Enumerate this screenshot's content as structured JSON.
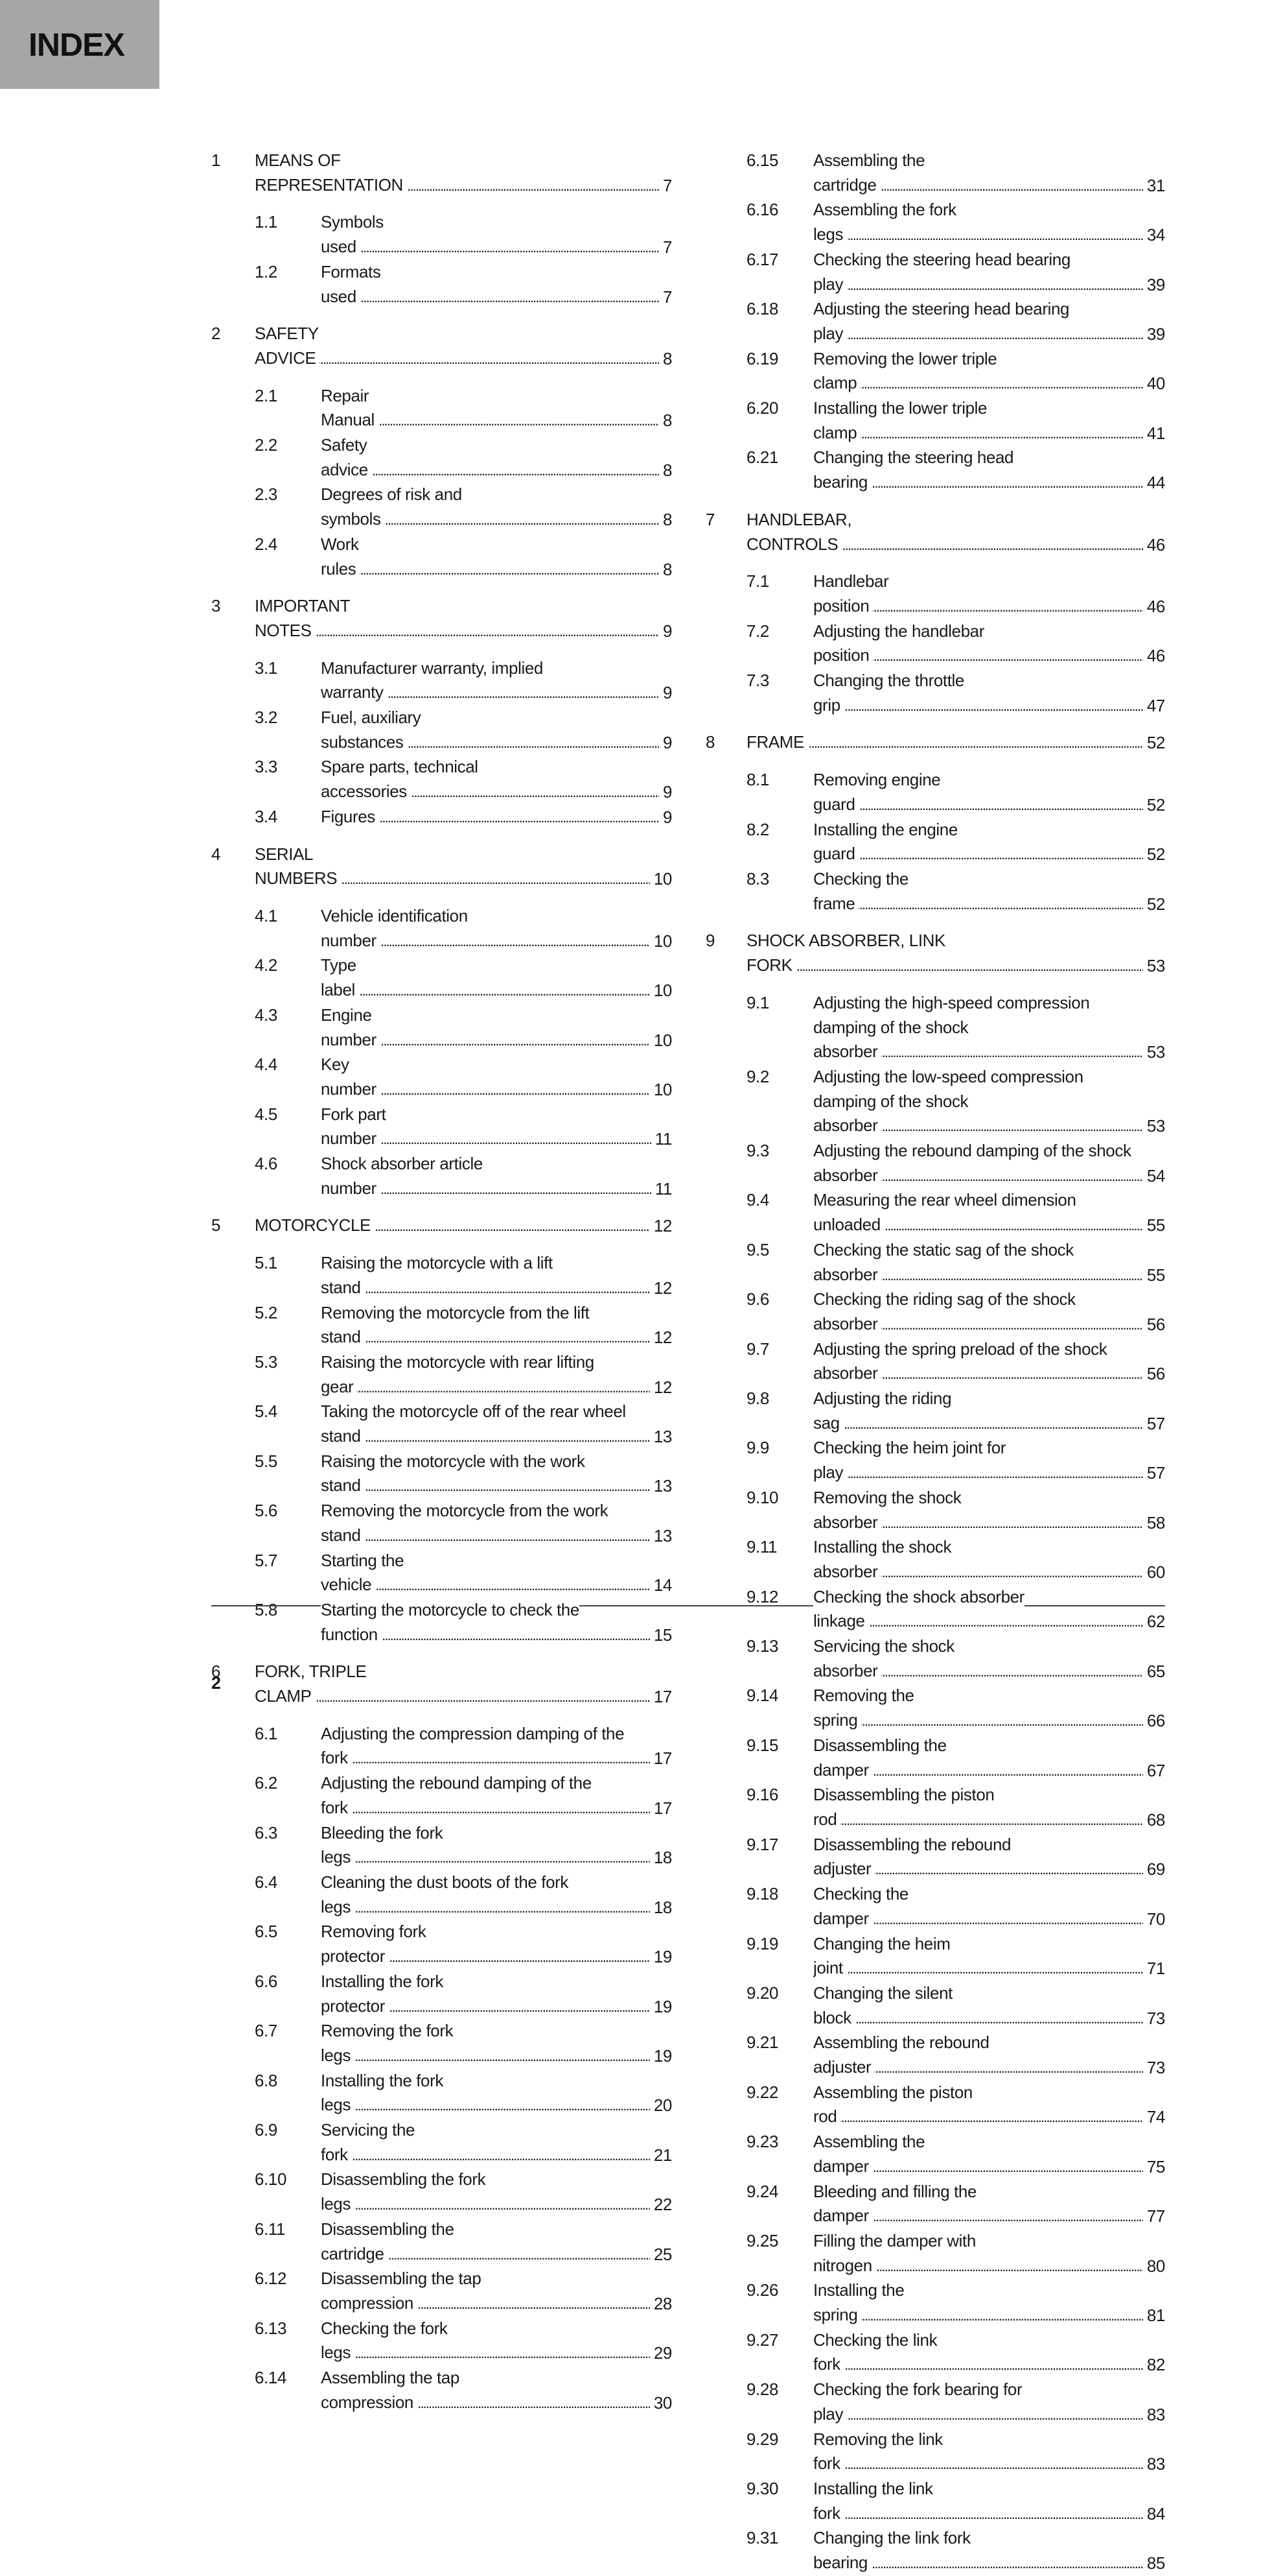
{
  "header": {
    "title": "INDEX"
  },
  "footer": {
    "page_number": "2"
  },
  "toc": {
    "left": [
      {
        "type": "chapter",
        "num": "1",
        "title": "MEANS OF REPRESENTATION",
        "page": "7"
      },
      {
        "type": "sub",
        "num": "1.1",
        "title": "Symbols used",
        "page": "7"
      },
      {
        "type": "sub",
        "num": "1.2",
        "title": "Formats used",
        "page": "7"
      },
      {
        "type": "chapter",
        "num": "2",
        "title": "SAFETY ADVICE",
        "page": "8"
      },
      {
        "type": "sub",
        "num": "2.1",
        "title": "Repair Manual",
        "page": "8"
      },
      {
        "type": "sub",
        "num": "2.2",
        "title": "Safety advice",
        "page": "8"
      },
      {
        "type": "sub",
        "num": "2.3",
        "title": "Degrees of risk and symbols",
        "page": "8"
      },
      {
        "type": "sub",
        "num": "2.4",
        "title": "Work rules",
        "page": "8"
      },
      {
        "type": "chapter",
        "num": "3",
        "title": "IMPORTANT NOTES",
        "page": "9"
      },
      {
        "type": "sub",
        "num": "3.1",
        "title": "Manufacturer warranty, implied warranty",
        "page": "9"
      },
      {
        "type": "sub",
        "num": "3.2",
        "title": "Fuel, auxiliary substances",
        "page": "9"
      },
      {
        "type": "sub",
        "num": "3.3",
        "title": "Spare parts, technical accessories",
        "page": "9"
      },
      {
        "type": "sub",
        "num": "3.4",
        "title": "Figures",
        "page": "9"
      },
      {
        "type": "chapter",
        "num": "4",
        "title": "SERIAL NUMBERS",
        "page": "10"
      },
      {
        "type": "sub",
        "num": "4.1",
        "title": "Vehicle identification number",
        "page": "10"
      },
      {
        "type": "sub",
        "num": "4.2",
        "title": "Type label",
        "page": "10"
      },
      {
        "type": "sub",
        "num": "4.3",
        "title": "Engine number",
        "page": "10"
      },
      {
        "type": "sub",
        "num": "4.4",
        "title": "Key number",
        "page": "10"
      },
      {
        "type": "sub",
        "num": "4.5",
        "title": "Fork part number",
        "page": "11"
      },
      {
        "type": "sub",
        "num": "4.6",
        "title": "Shock absorber article number",
        "page": "11"
      },
      {
        "type": "chapter",
        "num": "5",
        "title": "MOTORCYCLE",
        "page": "12"
      },
      {
        "type": "sub",
        "num": "5.1",
        "title": "Raising the motorcycle with a lift stand",
        "page": "12"
      },
      {
        "type": "sub",
        "num": "5.2",
        "title": "Removing the motorcycle from the lift stand",
        "page": "12"
      },
      {
        "type": "sub",
        "num": "5.3",
        "title": "Raising the motorcycle with rear lifting gear",
        "page": "12"
      },
      {
        "type": "sub",
        "num": "5.4",
        "title": "Taking the motorcycle off of the rear wheel stand",
        "page": "13"
      },
      {
        "type": "sub",
        "num": "5.5",
        "title": "Raising the motorcycle with the work stand",
        "page": "13"
      },
      {
        "type": "sub",
        "num": "5.6",
        "title": "Removing the motorcycle from the work stand",
        "page": "13"
      },
      {
        "type": "sub",
        "num": "5.7",
        "title": "Starting the vehicle",
        "page": "14"
      },
      {
        "type": "sub",
        "num": "5.8",
        "title": "Starting the motorcycle to check the function",
        "page": "15"
      },
      {
        "type": "chapter",
        "num": "6",
        "title": "FORK, TRIPLE CLAMP",
        "page": "17"
      },
      {
        "type": "sub",
        "num": "6.1",
        "title": "Adjusting the compression damping of the fork",
        "page": "17"
      },
      {
        "type": "sub",
        "num": "6.2",
        "title": "Adjusting the rebound damping of the fork",
        "page": "17"
      },
      {
        "type": "sub",
        "num": "6.3",
        "title": "Bleeding the fork legs",
        "page": "18"
      },
      {
        "type": "sub",
        "num": "6.4",
        "title": "Cleaning the dust boots of the fork legs",
        "page": "18"
      },
      {
        "type": "sub",
        "num": "6.5",
        "title": "Removing fork protector",
        "page": "19"
      },
      {
        "type": "sub",
        "num": "6.6",
        "title": "Installing the fork protector",
        "page": "19"
      },
      {
        "type": "sub",
        "num": "6.7",
        "title": "Removing the fork legs",
        "page": "19"
      },
      {
        "type": "sub",
        "num": "6.8",
        "title": "Installing the fork legs",
        "page": "20"
      },
      {
        "type": "sub",
        "num": "6.9",
        "title": "Servicing the fork",
        "page": "21"
      },
      {
        "type": "sub",
        "num": "6.10",
        "title": "Disassembling the fork legs",
        "page": "22"
      },
      {
        "type": "sub",
        "num": "6.11",
        "title": "Disassembling the cartridge",
        "page": "25"
      },
      {
        "type": "sub",
        "num": "6.12",
        "title": "Disassembling the tap compression",
        "page": "28"
      },
      {
        "type": "sub",
        "num": "6.13",
        "title": "Checking the fork legs",
        "page": "29"
      },
      {
        "type": "sub",
        "num": "6.14",
        "title": "Assembling the tap compression",
        "page": "30"
      }
    ],
    "right": [
      {
        "type": "sub",
        "num": "6.15",
        "title": "Assembling the cartridge",
        "page": "31"
      },
      {
        "type": "sub",
        "num": "6.16",
        "title": "Assembling the fork legs",
        "page": "34"
      },
      {
        "type": "sub",
        "num": "6.17",
        "title": "Checking the steering head bearing play",
        "page": "39"
      },
      {
        "type": "sub",
        "num": "6.18",
        "title": "Adjusting the steering head bearing play",
        "page": "39"
      },
      {
        "type": "sub",
        "num": "6.19",
        "title": "Removing the lower triple clamp",
        "page": "40"
      },
      {
        "type": "sub",
        "num": "6.20",
        "title": "Installing the lower triple clamp",
        "page": "41"
      },
      {
        "type": "sub",
        "num": "6.21",
        "title": "Changing the steering head bearing",
        "page": "44"
      },
      {
        "type": "chapter",
        "num": "7",
        "title": "HANDLEBAR, CONTROLS",
        "page": "46"
      },
      {
        "type": "sub",
        "num": "7.1",
        "title": "Handlebar position",
        "page": "46"
      },
      {
        "type": "sub",
        "num": "7.2",
        "title": "Adjusting the handlebar position",
        "page": "46"
      },
      {
        "type": "sub",
        "num": "7.3",
        "title": "Changing the throttle grip",
        "page": "47"
      },
      {
        "type": "chapter",
        "num": "8",
        "title": "FRAME",
        "page": "52"
      },
      {
        "type": "sub",
        "num": "8.1",
        "title": "Removing engine guard",
        "page": "52"
      },
      {
        "type": "sub",
        "num": "8.2",
        "title": "Installing the engine guard",
        "page": "52"
      },
      {
        "type": "sub",
        "num": "8.3",
        "title": "Checking the frame",
        "page": "52"
      },
      {
        "type": "chapter",
        "num": "9",
        "title": "SHOCK ABSORBER, LINK FORK",
        "page": "53"
      },
      {
        "type": "sub",
        "num": "9.1",
        "title": "Adjusting the high-speed compression damping of the shock absorber",
        "page": "53"
      },
      {
        "type": "sub",
        "num": "9.2",
        "title": "Adjusting the low-speed compression damping of the shock absorber",
        "page": "53"
      },
      {
        "type": "sub",
        "num": "9.3",
        "title": "Adjusting the rebound damping of the shock absorber",
        "page": "54"
      },
      {
        "type": "sub",
        "num": "9.4",
        "title": "Measuring the rear wheel dimension unloaded",
        "page": "55"
      },
      {
        "type": "sub",
        "num": "9.5",
        "title": "Checking the static sag of the shock absorber",
        "page": "55"
      },
      {
        "type": "sub",
        "num": "9.6",
        "title": "Checking the riding sag of the shock absorber",
        "page": "56"
      },
      {
        "type": "sub",
        "num": "9.7",
        "title": "Adjusting the spring preload of the shock absorber",
        "page": "56"
      },
      {
        "type": "sub",
        "num": "9.8",
        "title": "Adjusting the riding sag",
        "page": "57"
      },
      {
        "type": "sub",
        "num": "9.9",
        "title": "Checking the heim joint for play",
        "page": "57"
      },
      {
        "type": "sub",
        "num": "9.10",
        "title": "Removing the shock absorber",
        "page": "58"
      },
      {
        "type": "sub",
        "num": "9.11",
        "title": "Installing the shock absorber",
        "page": "60"
      },
      {
        "type": "sub",
        "num": "9.12",
        "title": "Checking the shock absorber linkage",
        "page": "62"
      },
      {
        "type": "sub",
        "num": "9.13",
        "title": "Servicing the shock absorber",
        "page": "65"
      },
      {
        "type": "sub",
        "num": "9.14",
        "title": "Removing the spring",
        "page": "66"
      },
      {
        "type": "sub",
        "num": "9.15",
        "title": "Disassembling the damper",
        "page": "67"
      },
      {
        "type": "sub",
        "num": "9.16",
        "title": "Disassembling the piston rod",
        "page": "68"
      },
      {
        "type": "sub",
        "num": "9.17",
        "title": "Disassembling the rebound adjuster",
        "page": "69"
      },
      {
        "type": "sub",
        "num": "9.18",
        "title": "Checking the damper",
        "page": "70"
      },
      {
        "type": "sub",
        "num": "9.19",
        "title": "Changing the heim joint",
        "page": "71"
      },
      {
        "type": "sub",
        "num": "9.20",
        "title": "Changing the silent block",
        "page": "73"
      },
      {
        "type": "sub",
        "num": "9.21",
        "title": "Assembling the rebound adjuster",
        "page": "73"
      },
      {
        "type": "sub",
        "num": "9.22",
        "title": "Assembling the piston rod",
        "page": "74"
      },
      {
        "type": "sub",
        "num": "9.23",
        "title": "Assembling the damper",
        "page": "75"
      },
      {
        "type": "sub",
        "num": "9.24",
        "title": "Bleeding and filling the damper",
        "page": "77"
      },
      {
        "type": "sub",
        "num": "9.25",
        "title": "Filling the damper with nitrogen",
        "page": "80"
      },
      {
        "type": "sub",
        "num": "9.26",
        "title": "Installing the spring",
        "page": "81"
      },
      {
        "type": "sub",
        "num": "9.27",
        "title": "Checking the link fork",
        "page": "82"
      },
      {
        "type": "sub",
        "num": "9.28",
        "title": "Checking the fork bearing for play",
        "page": "83"
      },
      {
        "type": "sub",
        "num": "9.29",
        "title": "Removing the link fork",
        "page": "83"
      },
      {
        "type": "sub",
        "num": "9.30",
        "title": "Installing the link fork",
        "page": "84"
      },
      {
        "type": "sub",
        "num": "9.31",
        "title": "Changing the link fork bearing",
        "page": "85"
      }
    ]
  }
}
